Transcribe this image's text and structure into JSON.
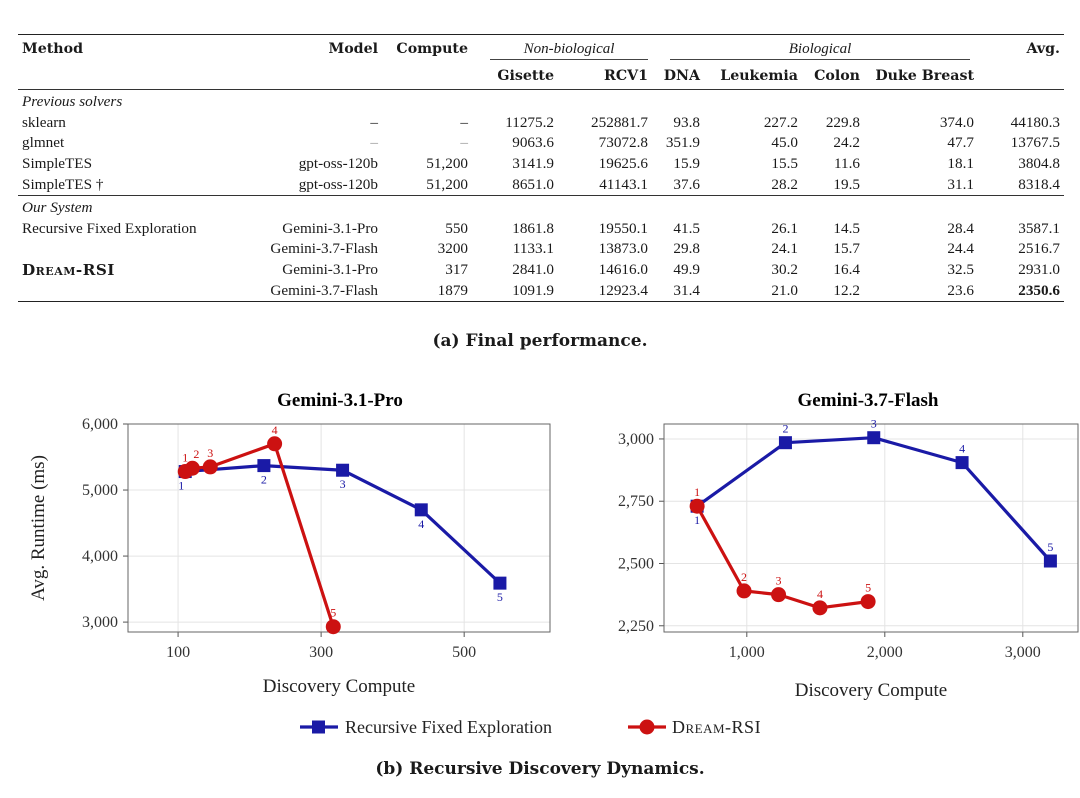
{
  "table": {
    "headers": {
      "method": "Method",
      "model": "Model",
      "compute": "Compute",
      "group_nonbio": "Non-biological",
      "group_bio": "Biological",
      "avg": "Avg.",
      "datasets": [
        "Gisette",
        "RCV1",
        "DNA",
        "Leukemia",
        "Colon",
        "Duke Breast"
      ]
    },
    "section_prev": "Previous solvers",
    "section_ours": "Our System",
    "rows_prev": [
      {
        "method": "sklearn",
        "model": "–",
        "compute": "–",
        "vals": [
          "11275.2",
          "252881.7",
          "93.8",
          "227.2",
          "229.8",
          "374.0"
        ],
        "avg": "44180.3"
      },
      {
        "method": "glmnet",
        "model": "–",
        "compute": "–",
        "vals": [
          "9063.6",
          "73072.8",
          "351.9",
          "45.0",
          "24.2",
          "47.7"
        ],
        "avg": "13767.5"
      },
      {
        "method": "SimpleTES",
        "model": "gpt-oss-120b",
        "compute": "51,200",
        "vals": [
          "3141.9",
          "19625.6",
          "15.9",
          "15.5",
          "11.6",
          "18.1"
        ],
        "avg": "3804.8"
      },
      {
        "method": "SimpleTES †",
        "model": "gpt-oss-120b",
        "compute": "51,200",
        "vals": [
          "8651.0",
          "41143.1",
          "37.6",
          "28.2",
          "19.5",
          "31.1"
        ],
        "avg": "8318.4"
      }
    ],
    "rows_ours": [
      {
        "method": "Recursive Fixed Exploration",
        "model": "Gemini-3.1-Pro",
        "compute": "550",
        "vals": [
          "1861.8",
          "19550.1",
          "41.5",
          "26.1",
          "14.5",
          "28.4"
        ],
        "avg": "3587.1"
      },
      {
        "method": "",
        "model": "Gemini-3.7-Flash",
        "compute": "3200",
        "vals": [
          "1133.1",
          "13873.0",
          "29.8",
          "24.1",
          "15.7",
          "24.4"
        ],
        "avg": "2516.7"
      },
      {
        "method": "Dream-RSI",
        "model": "Gemini-3.1-Pro",
        "compute": "317",
        "vals": [
          "2841.0",
          "14616.0",
          "49.9",
          "30.2",
          "16.4",
          "32.5"
        ],
        "avg": "2931.0"
      },
      {
        "method": "",
        "model": "Gemini-3.7-Flash",
        "compute": "1879",
        "vals": [
          "1091.9",
          "12923.4",
          "31.4",
          "21.0",
          "12.2",
          "23.6"
        ],
        "avg": "2350.6"
      }
    ],
    "caption": "(a) Final performance."
  },
  "colors": {
    "rfe": "#1a1aa6",
    "dream": "#cc1111",
    "grid": "#e4e4e4"
  },
  "chart_data": [
    {
      "type": "line",
      "title": "Gemini-3.1-Pro",
      "xlabel": "Discovery Compute",
      "ylabel": "Avg. Runtime (ms)",
      "xlim": [
        30,
        620
      ],
      "ylim": [
        2850,
        6000
      ],
      "xticks": [
        100,
        300,
        500
      ],
      "xtick_labels": [
        "100",
        "300",
        "500"
      ],
      "yticks": [
        3000,
        4000,
        5000,
        6000
      ],
      "ytick_labels": [
        "3,000",
        "4,000",
        "5,000",
        "6,000"
      ],
      "grid": true,
      "series": [
        {
          "name": "Recursive Fixed Exploration",
          "marker": "square",
          "x": [
            110,
            220,
            330,
            440,
            550
          ],
          "y": [
            5280,
            5370,
            5300,
            4700,
            3590
          ],
          "labels": [
            "1",
            "2",
            "3",
            "4",
            "5"
          ]
        },
        {
          "name": "Dream-RSI",
          "marker": "circle",
          "x": [
            110,
            120,
            145,
            235,
            317
          ],
          "y": [
            5280,
            5330,
            5350,
            5700,
            2930
          ],
          "labels": [
            "1",
            "2",
            "3",
            "4",
            "5"
          ]
        }
      ]
    },
    {
      "type": "line",
      "title": "Gemini-3.7-Flash",
      "xlabel": "Discovery Compute",
      "ylabel": "",
      "xlim": [
        400,
        3400
      ],
      "ylim": [
        2225,
        3060
      ],
      "xticks": [
        1000,
        2000,
        3000
      ],
      "xtick_labels": [
        "1,000",
        "2,000",
        "3,000"
      ],
      "yticks": [
        2250,
        2500,
        2750,
        3000
      ],
      "ytick_labels": [
        "2,250",
        "2,500",
        "2,750",
        "3,000"
      ],
      "grid": true,
      "series": [
        {
          "name": "Recursive Fixed Exploration",
          "marker": "square",
          "x": [
            640,
            1280,
            1920,
            2560,
            3200
          ],
          "y": [
            2730,
            2985,
            3005,
            2905,
            2510
          ],
          "labels": [
            "1",
            "2",
            "3",
            "4",
            "5"
          ]
        },
        {
          "name": "Dream-RSI",
          "marker": "circle",
          "x": [
            640,
            980,
            1230,
            1530,
            1879
          ],
          "y": [
            2730,
            2390,
            2375,
            2322,
            2347
          ],
          "labels": [
            "1",
            "2",
            "3",
            "4",
            "5"
          ]
        }
      ]
    }
  ],
  "legend": {
    "rfe": "Recursive Fixed Exploration",
    "dream": "Dream-RSI"
  },
  "figure_caption": "(b) Recursive Discovery Dynamics."
}
